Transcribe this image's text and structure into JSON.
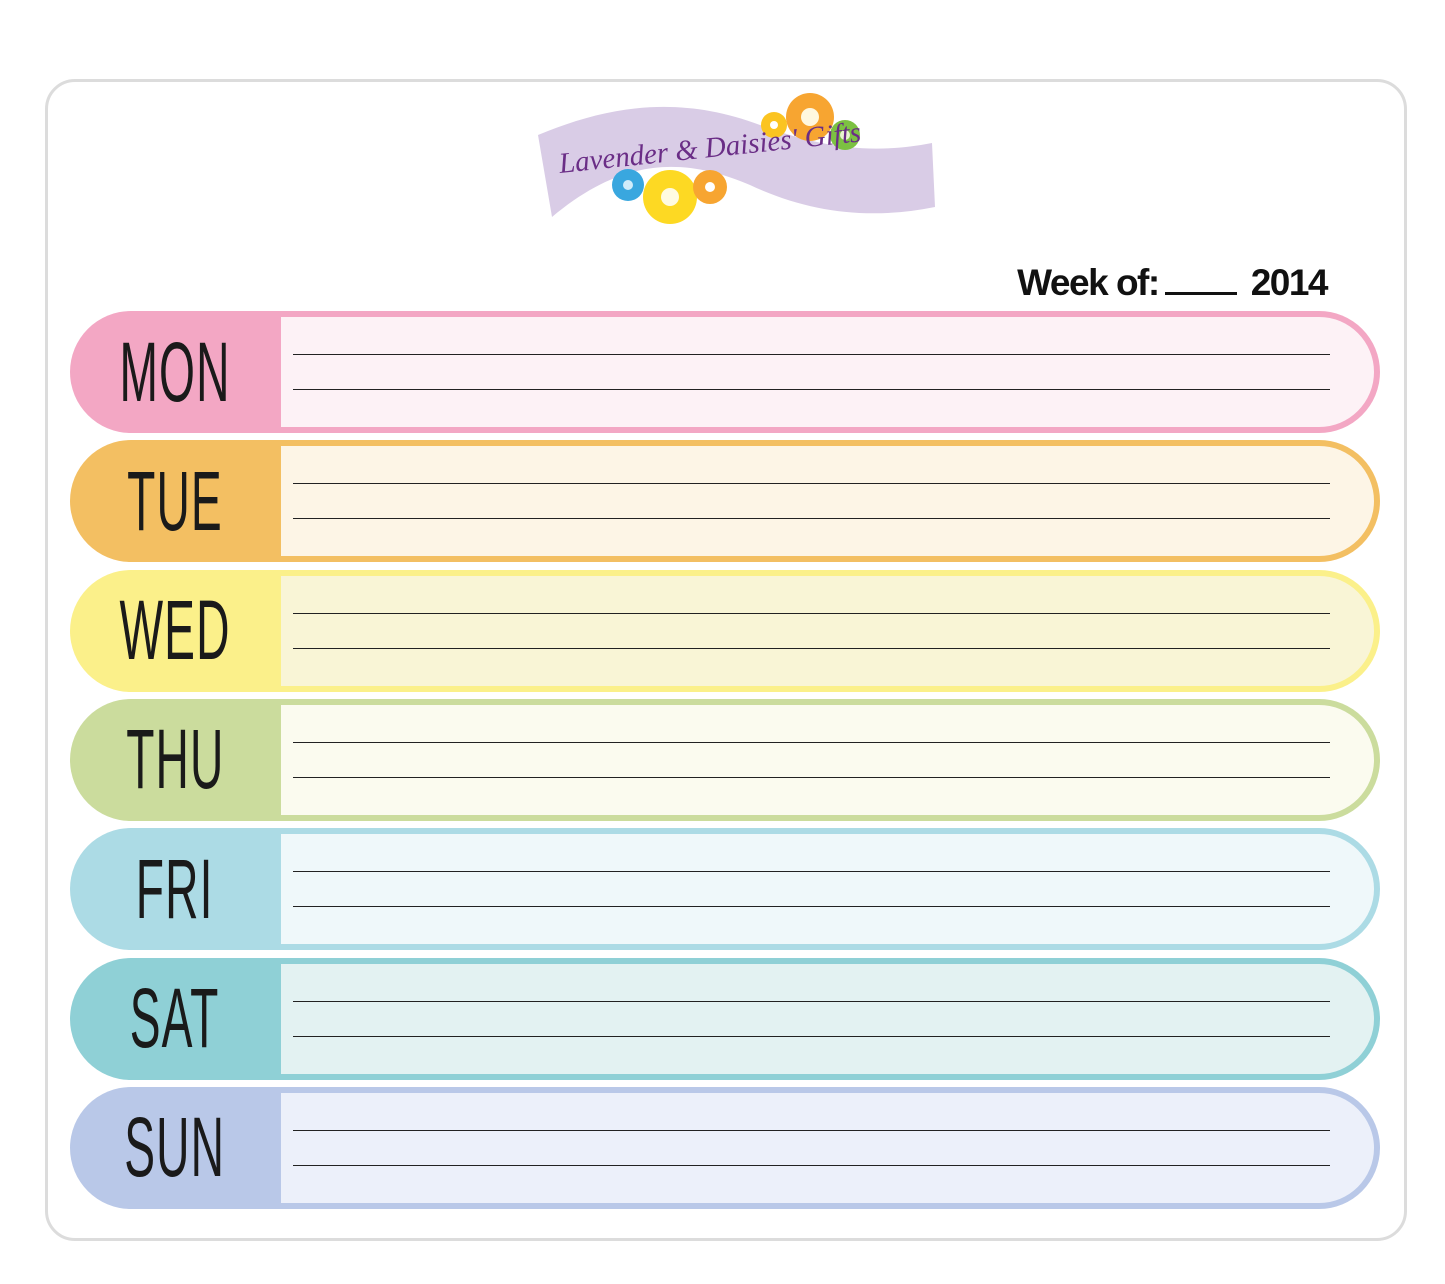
{
  "logo": {
    "text": "Lavender & Daisies' Gifts",
    "banner_color": "#d9cce6",
    "text_color": "#6a2d86"
  },
  "header": {
    "week_label": "Week of:",
    "year": "2014"
  },
  "days": [
    {
      "label": "MON",
      "tab_color": "#f3a7c4",
      "fill_color": "#fdf2f6"
    },
    {
      "label": "TUE",
      "tab_color": "#f3bf62",
      "fill_color": "#fdf5e6"
    },
    {
      "label": "WED",
      "tab_color": "#fbf08a",
      "fill_color": "#f9f5d6"
    },
    {
      "label": "THU",
      "tab_color": "#cbdc9d",
      "fill_color": "#fbfbef"
    },
    {
      "label": "FRI",
      "tab_color": "#acdbe5",
      "fill_color": "#eff8fa"
    },
    {
      "label": "SAT",
      "tab_color": "#8fd0d6",
      "fill_color": "#e3f2f2"
    },
    {
      "label": "SUN",
      "tab_color": "#b9c8e8",
      "fill_color": "#ecf0fa"
    }
  ]
}
